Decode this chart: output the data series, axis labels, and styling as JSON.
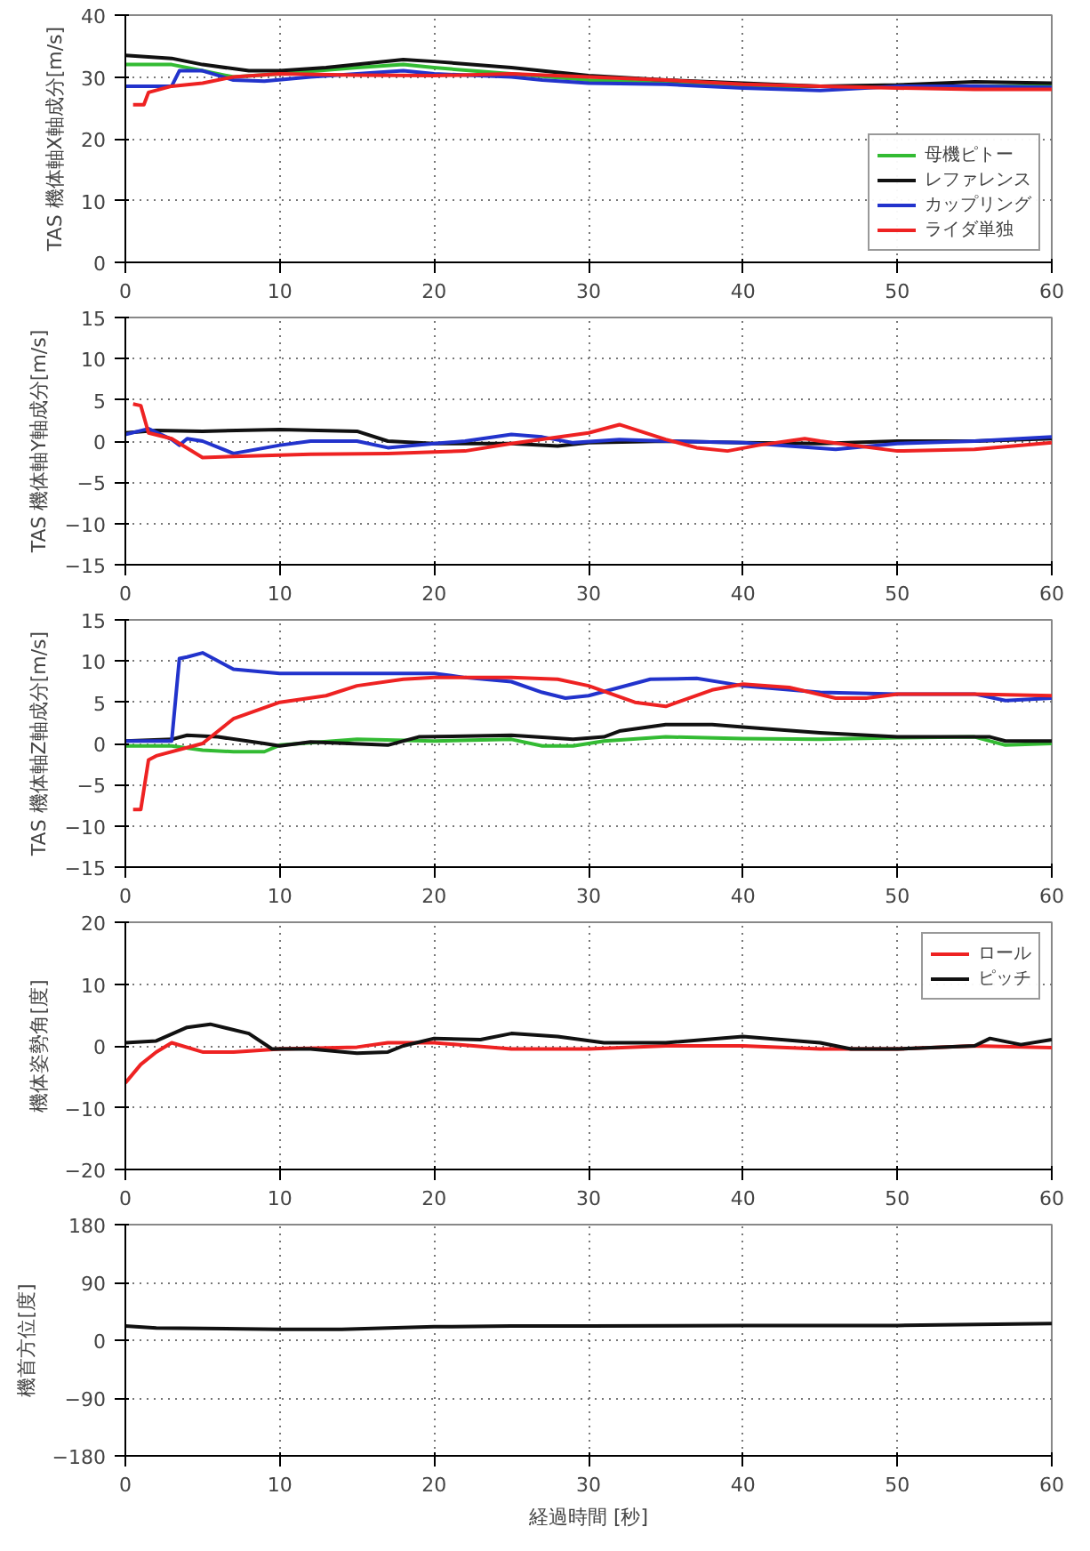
{
  "chart_data": [
    {
      "type": "line",
      "ylabel": "TAS 機体軸X軸成分[m/s]",
      "xlim": [
        0,
        60
      ],
      "xticks": [
        0,
        10,
        20,
        30,
        40,
        50,
        60
      ],
      "ylim": [
        0,
        40
      ],
      "yticks": [
        0,
        10,
        20,
        30,
        40
      ],
      "grid": true,
      "legend": "bottom right",
      "line_style": "solid",
      "series": [
        {
          "name": "母機ピトー",
          "color": "#33bb33",
          "x": [
            0,
            3,
            5,
            7,
            10,
            15,
            18,
            20,
            25,
            30,
            35,
            40,
            45,
            50,
            55,
            60
          ],
          "values": [
            32,
            32,
            31,
            30,
            30.5,
            31.5,
            32,
            31.5,
            30.5,
            29.5,
            29,
            28.5,
            28.5,
            28.5,
            28.5,
            28.5
          ]
        },
        {
          "name": "レファレンス",
          "color": "#111111",
          "x": [
            0,
            3,
            5,
            8,
            10,
            13,
            18,
            20,
            25,
            30,
            35,
            40,
            45,
            50,
            55,
            60
          ],
          "values": [
            33.5,
            33,
            32,
            31,
            31,
            31.5,
            32.8,
            32.5,
            31.5,
            30.2,
            29.5,
            29,
            28.5,
            28.7,
            29.2,
            29
          ]
        },
        {
          "name": "カップリング",
          "color": "#2233cc",
          "x": [
            0,
            3,
            3.5,
            5,
            7,
            9,
            12,
            15,
            18,
            20,
            25,
            27,
            30,
            35,
            40,
            45,
            50,
            55,
            60
          ],
          "values": [
            28.5,
            28.5,
            31,
            31,
            29.5,
            29.3,
            30,
            30.5,
            31,
            30.5,
            30,
            29.5,
            29,
            28.8,
            28.2,
            27.8,
            28.5,
            28.5,
            28.3
          ]
        },
        {
          "name": "ライダ単独",
          "color": "#ee2222",
          "x": [
            0.5,
            1.2,
            1.5,
            3,
            5,
            7,
            10,
            15,
            20,
            25,
            30,
            35,
            40,
            45,
            50,
            55,
            60
          ],
          "values": [
            25.5,
            25.5,
            27.5,
            28.5,
            29,
            30,
            30.5,
            30.3,
            30.2,
            30.5,
            30,
            29.5,
            28.8,
            28.5,
            28.2,
            28,
            28
          ]
        }
      ]
    },
    {
      "type": "line",
      "ylabel": "TAS 機体軸Y軸成分[m/s]",
      "xlim": [
        0,
        60
      ],
      "xticks": [
        0,
        10,
        20,
        30,
        40,
        50,
        60
      ],
      "ylim": [
        -15,
        15
      ],
      "yticks": [
        -15,
        -10,
        -5,
        0,
        5,
        10,
        15
      ],
      "grid": true,
      "line_style": "solid",
      "series": [
        {
          "color": "#111111",
          "x": [
            0,
            2,
            5,
            10,
            15,
            17,
            20,
            25,
            28,
            30,
            35,
            40,
            45,
            50,
            55,
            60
          ],
          "values": [
            1,
            1.3,
            1.2,
            1.4,
            1.2,
            0,
            -0.3,
            -0.3,
            -0.6,
            -0.2,
            0,
            -0.2,
            -0.3,
            0,
            0,
            0.3
          ]
        },
        {
          "color": "#2233cc",
          "x": [
            0,
            1.5,
            3,
            3.5,
            4,
            5,
            7,
            10,
            12,
            15,
            17,
            20,
            22,
            25,
            27,
            29,
            32,
            35,
            40,
            46,
            50,
            55,
            60
          ],
          "values": [
            0.8,
            1.5,
            0.2,
            -0.5,
            0.3,
            0,
            -1.5,
            -0.5,
            0,
            0,
            -0.8,
            -0.3,
            0,
            0.8,
            0.5,
            -0.2,
            0.2,
            0,
            -0.2,
            -1,
            -0.3,
            0,
            0.5
          ]
        },
        {
          "color": "#ee2222",
          "x": [
            0.5,
            1,
            1.5,
            3,
            5,
            8,
            12,
            17,
            22,
            25,
            30,
            32,
            35,
            37,
            39,
            41,
            44,
            45,
            50,
            55,
            60
          ],
          "values": [
            4.5,
            4.3,
            1,
            0.3,
            -2,
            -1.8,
            -1.6,
            -1.5,
            -1.2,
            -0.3,
            1,
            2,
            0.2,
            -0.8,
            -1.2,
            -0.5,
            0.3,
            0,
            -1.2,
            -1,
            -0.2
          ]
        }
      ]
    },
    {
      "type": "line",
      "ylabel": "TAS 機体軸Z軸成分[m/s]",
      "xlim": [
        0,
        60
      ],
      "xticks": [
        0,
        10,
        20,
        30,
        40,
        50,
        60
      ],
      "ylim": [
        -15,
        15
      ],
      "yticks": [
        -15,
        -10,
        -5,
        0,
        5,
        10,
        15
      ],
      "grid": true,
      "line_style": "solid",
      "series": [
        {
          "color": "#33bb33",
          "x": [
            0,
            3,
            5,
            7,
            9,
            10,
            15,
            20,
            25,
            27,
            29,
            31,
            35,
            40,
            45,
            50,
            55,
            57,
            60
          ],
          "values": [
            -0.3,
            -0.3,
            -0.8,
            -1,
            -1,
            -0.2,
            0.5,
            0.3,
            0.5,
            -0.3,
            -0.3,
            0.3,
            0.8,
            0.6,
            0.5,
            0.7,
            0.8,
            -0.2,
            0
          ]
        },
        {
          "color": "#111111",
          "x": [
            0,
            3,
            4,
            6,
            9,
            10,
            12,
            17,
            19,
            25,
            29,
            31,
            32,
            35,
            38,
            40,
            45,
            50,
            56,
            57,
            60
          ],
          "values": [
            0.3,
            0.5,
            1,
            0.8,
            0,
            -0.3,
            0.2,
            -0.2,
            0.8,
            1,
            0.5,
            0.8,
            1.5,
            2.3,
            2.3,
            2,
            1.3,
            0.8,
            0.8,
            0.3,
            0.3
          ]
        },
        {
          "color": "#2233cc",
          "x": [
            0,
            3,
            3.5,
            4,
            5,
            7,
            10,
            15,
            20,
            22,
            25,
            27,
            28.5,
            30,
            32,
            34,
            37,
            40,
            45,
            50,
            55,
            57,
            60
          ],
          "values": [
            0.3,
            0.3,
            10.3,
            10.5,
            11,
            9,
            8.5,
            8.5,
            8.5,
            8,
            7.5,
            6.2,
            5.5,
            5.8,
            6.8,
            7.8,
            7.9,
            7,
            6.2,
            6,
            6,
            5.2,
            5.5
          ]
        },
        {
          "color": "#ee2222",
          "x": [
            0.5,
            1,
            1.5,
            2,
            5,
            7,
            10,
            13,
            15,
            18,
            20,
            25,
            28,
            30,
            33,
            35,
            38,
            40,
            43,
            46,
            48,
            50,
            55,
            60
          ],
          "values": [
            -8,
            -8,
            -2,
            -1.5,
            0,
            3,
            5,
            5.8,
            7,
            7.8,
            8,
            8,
            7.8,
            7,
            5,
            4.5,
            6.5,
            7.2,
            6.8,
            5.5,
            5.5,
            6,
            6,
            5.8
          ]
        }
      ]
    },
    {
      "type": "line",
      "ylabel": "機体姿勢角[度]",
      "xlim": [
        0,
        60
      ],
      "xticks": [
        0,
        10,
        20,
        30,
        40,
        50,
        60
      ],
      "ylim": [
        -20,
        20
      ],
      "yticks": [
        -20,
        -10,
        0,
        10,
        20
      ],
      "grid": true,
      "legend": "top right",
      "line_style": "solid",
      "series": [
        {
          "name": "ロール",
          "color": "#ee2222",
          "x": [
            0,
            1,
            2,
            3,
            5,
            7,
            10,
            15,
            17,
            20,
            25,
            30,
            35,
            40,
            45,
            50,
            55,
            60
          ],
          "values": [
            -6,
            -3,
            -1,
            0.5,
            -1,
            -1,
            -0.5,
            -0.2,
            0.5,
            0.5,
            -0.5,
            -0.5,
            0,
            0,
            -0.5,
            -0.5,
            0,
            -0.3
          ]
        },
        {
          "name": "ピッチ",
          "color": "#111111",
          "x": [
            0,
            2,
            4,
            5.5,
            8,
            9.5,
            12,
            15,
            17,
            18,
            20,
            23,
            25,
            28,
            31,
            35,
            40,
            45,
            47,
            50,
            55,
            56,
            58,
            60
          ],
          "values": [
            0.5,
            0.8,
            3,
            3.5,
            2,
            -0.5,
            -0.5,
            -1.2,
            -1,
            0,
            1.2,
            1,
            2,
            1.5,
            0.5,
            0.5,
            1.5,
            0.5,
            -0.5,
            -0.5,
            0,
            1.2,
            0.2,
            1
          ]
        }
      ]
    },
    {
      "type": "line",
      "ylabel": "機首方位[度]",
      "xlabel": "経過時間 [秒]",
      "xlim": [
        0,
        60
      ],
      "xticks": [
        0,
        10,
        20,
        30,
        40,
        50,
        60
      ],
      "ylim": [
        -180,
        180
      ],
      "yticks": [
        -180,
        -90,
        0,
        90,
        180
      ],
      "grid": true,
      "line_style": "solid",
      "series": [
        {
          "color": "#111111",
          "x": [
            0,
            2,
            10,
            14,
            20,
            25,
            30,
            40,
            50,
            60
          ],
          "values": [
            22,
            19,
            17,
            17,
            21,
            22,
            22,
            23,
            23,
            26
          ]
        }
      ]
    }
  ]
}
